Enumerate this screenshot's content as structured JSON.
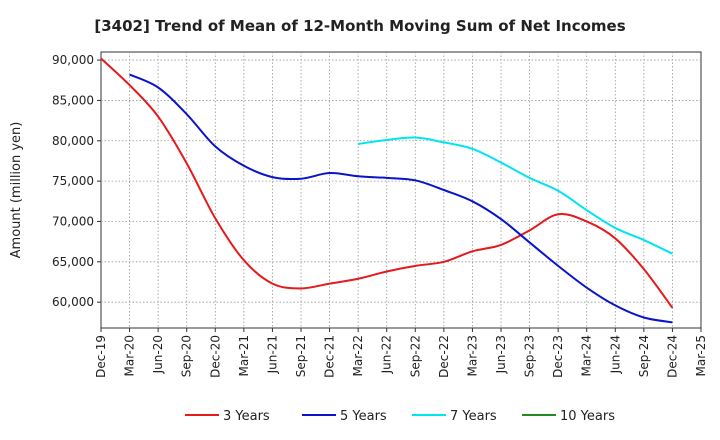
{
  "chart_data": {
    "type": "line",
    "title": "[3402]  Trend of Mean of 12-Month Moving Sum of Net Incomes",
    "ylabel": "Amount (million yen)",
    "xlabel": "",
    "ylim": [
      56800,
      91000
    ],
    "yticks": [
      60000,
      65000,
      70000,
      75000,
      80000,
      85000,
      90000
    ],
    "ytick_labels": [
      "60,000",
      "65,000",
      "70,000",
      "75,000",
      "80,000",
      "85,000",
      "90,000"
    ],
    "x_tick_labels": [
      "Dec-19",
      "Mar-20",
      "Jun-20",
      "Sep-20",
      "Dec-20",
      "Mar-21",
      "Jun-21",
      "Sep-21",
      "Dec-21",
      "Mar-22",
      "Jun-22",
      "Sep-22",
      "Dec-22",
      "Mar-23",
      "Jun-23",
      "Sep-23",
      "Dec-23",
      "Mar-24",
      "Jun-24",
      "Sep-24",
      "Dec-24",
      "Mar-25"
    ],
    "grid": true,
    "legend_position": "bottom",
    "series": [
      {
        "name": "3 Years",
        "color": "#e41a1c",
        "x": [
          "Dec-19",
          "Mar-20",
          "Jun-20",
          "Sep-20",
          "Dec-20",
          "Mar-21",
          "Jun-21",
          "Sep-21",
          "Dec-21",
          "Mar-22",
          "Jun-22",
          "Sep-22",
          "Dec-22",
          "Mar-23",
          "Jun-23",
          "Sep-23",
          "Dec-23",
          "Mar-24",
          "Jun-24",
          "Sep-24",
          "Dec-24"
        ],
        "values": [
          90200,
          86900,
          83000,
          77200,
          70400,
          65200,
          62300,
          61700,
          62300,
          62900,
          63800,
          64500,
          65000,
          66300,
          67100,
          68900,
          70900,
          70000,
          67900,
          64100,
          59300
        ]
      },
      {
        "name": "5 Years",
        "color": "#0a14c8",
        "x": [
          "Mar-20",
          "Jun-20",
          "Sep-20",
          "Dec-20",
          "Mar-21",
          "Jun-21",
          "Sep-21",
          "Dec-21",
          "Mar-22",
          "Jun-22",
          "Sep-22",
          "Dec-22",
          "Mar-23",
          "Jun-23",
          "Sep-23",
          "Dec-23",
          "Mar-24",
          "Jun-24",
          "Sep-24",
          "Dec-24"
        ],
        "values": [
          88200,
          86600,
          83300,
          79300,
          76900,
          75500,
          75300,
          76000,
          75600,
          75400,
          75100,
          73900,
          72500,
          70300,
          67400,
          64500,
          61800,
          59600,
          58100,
          57500
        ]
      },
      {
        "name": "7 Years",
        "color": "#00e5ee",
        "x": [
          "Mar-22",
          "Jun-22",
          "Sep-22",
          "Dec-22",
          "Mar-23",
          "Jun-23",
          "Sep-23",
          "Dec-23",
          "Mar-24",
          "Jun-24",
          "Sep-24",
          "Dec-24"
        ],
        "values": [
          79600,
          80100,
          80400,
          79800,
          79000,
          77300,
          75400,
          73800,
          71400,
          69200,
          67700,
          66000
        ]
      },
      {
        "name": "10 Years",
        "color": "#228b22",
        "x": [],
        "values": []
      }
    ]
  }
}
